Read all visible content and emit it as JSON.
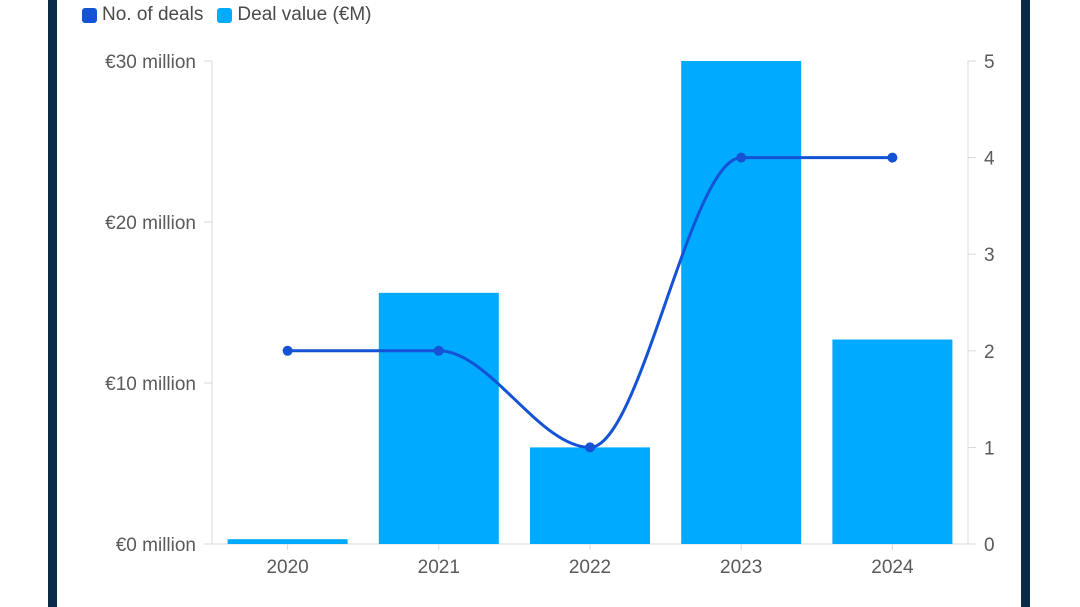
{
  "chart_data": {
    "type": "bar",
    "categories": [
      "2020",
      "2021",
      "2022",
      "2023",
      "2024"
    ],
    "series": [
      {
        "name": "Deal value (€M)",
        "kind": "bar",
        "axis": "left",
        "color": "#00aaff",
        "values": [
          0.3,
          15.6,
          6.0,
          30.0,
          12.7
        ]
      },
      {
        "name": "No. of deals",
        "kind": "line",
        "axis": "right",
        "color": "#1452d6",
        "values": [
          2,
          2,
          1,
          4,
          4
        ]
      }
    ],
    "y_left": {
      "ticks": [
        0,
        10,
        20,
        30
      ],
      "tick_labels": [
        "€0 million",
        "€10 million",
        "€20 million",
        "€30 million"
      ],
      "ylim": [
        0,
        30
      ]
    },
    "y_right": {
      "ticks": [
        0,
        1,
        2,
        3,
        4,
        5
      ],
      "tick_labels": [
        "0",
        "1",
        "2",
        "3",
        "4",
        "5"
      ],
      "ylim": [
        0,
        5
      ]
    },
    "legend": [
      "No. of deals",
      "Deal value (€M)"
    ],
    "legend_position": "top-left",
    "grid": false
  },
  "colors": {
    "frame": "#0b2a4a",
    "bar": "#00aaff",
    "line": "#1452d6",
    "axis": "#d9d9d9"
  }
}
